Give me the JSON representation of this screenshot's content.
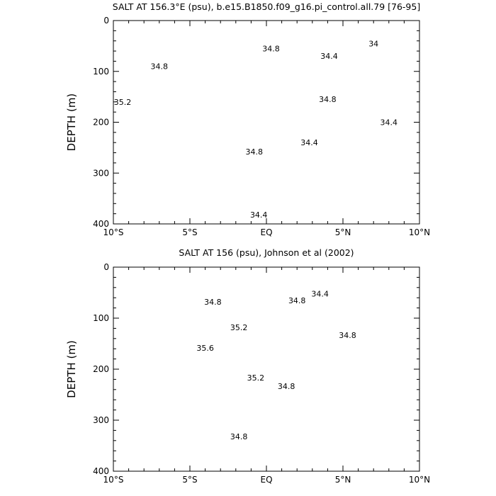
{
  "chart_data": [
    {
      "type": "heatmap",
      "title": "SALT AT 156.3°E (psu), b.e15.B1850.f09_g16.pi_control.all.79 [76-95]",
      "ylabel": "DEPTH (m)",
      "xlim": [
        -10,
        10
      ],
      "ylim": [
        400,
        0
      ],
      "xticks": [
        {
          "v": -10,
          "label": "10°S"
        },
        {
          "v": -5,
          "label": "5°S"
        },
        {
          "v": 0,
          "label": "EQ"
        },
        {
          "v": 5,
          "label": "5°N"
        },
        {
          "v": 10,
          "label": "10°N"
        }
      ],
      "yticks": [
        0,
        100,
        200,
        300,
        400
      ],
      "data_region": {
        "lat": [
          -10,
          10
        ],
        "depth": [
          0,
          400
        ]
      },
      "missing_band": {
        "lat": [
          -3.4,
          -2.9
        ],
        "depth": [
          145,
          400
        ]
      },
      "contour_labels": [
        {
          "text": "34",
          "lat": 7.0,
          "depth": 45
        },
        {
          "text": "34.8",
          "lat": 0.3,
          "depth": 55
        },
        {
          "text": "34.4",
          "lat": 4.1,
          "depth": 70
        },
        {
          "text": "34.8",
          "lat": -7.0,
          "depth": 90
        },
        {
          "text": "35.2",
          "lat": -9.4,
          "depth": 160
        },
        {
          "text": "34.8",
          "lat": 4.0,
          "depth": 155
        },
        {
          "text": "34.4",
          "lat": 8.0,
          "depth": 200
        },
        {
          "text": "34.8",
          "lat": -0.8,
          "depth": 258
        },
        {
          "text": "34.4",
          "lat": 2.8,
          "depth": 240
        },
        {
          "text": "34.4",
          "lat": -0.5,
          "depth": 382
        }
      ]
    },
    {
      "type": "heatmap",
      "title": "SALT AT 156 (psu), Johnson et al (2002)",
      "ylabel": "DEPTH (m)",
      "xlim": [
        -10,
        10
      ],
      "ylim": [
        400,
        0
      ],
      "xticks": [
        {
          "v": -10,
          "label": "10°S"
        },
        {
          "v": -5,
          "label": "5°S"
        },
        {
          "v": 0,
          "label": "EQ"
        },
        {
          "v": 5,
          "label": "5°N"
        },
        {
          "v": 10,
          "label": "10°N"
        }
      ],
      "yticks": [
        0,
        100,
        200,
        300,
        400
      ],
      "data_region": {
        "lat": [
          -5,
          8
        ],
        "depth": [
          0,
          400
        ]
      },
      "contour_labels": [
        {
          "text": "34.8",
          "lat": -3.5,
          "depth": 68
        },
        {
          "text": "34.4",
          "lat": 3.5,
          "depth": 52
        },
        {
          "text": "34.8",
          "lat": 2.0,
          "depth": 65
        },
        {
          "text": "35.2",
          "lat": -1.8,
          "depth": 118
        },
        {
          "text": "35.6",
          "lat": -4.0,
          "depth": 158
        },
        {
          "text": "34.8",
          "lat": 5.3,
          "depth": 133
        },
        {
          "text": "35.2",
          "lat": -0.7,
          "depth": 217
        },
        {
          "text": "34.8",
          "lat": 1.3,
          "depth": 233
        },
        {
          "text": "34.8",
          "lat": -1.8,
          "depth": 332
        }
      ]
    }
  ]
}
